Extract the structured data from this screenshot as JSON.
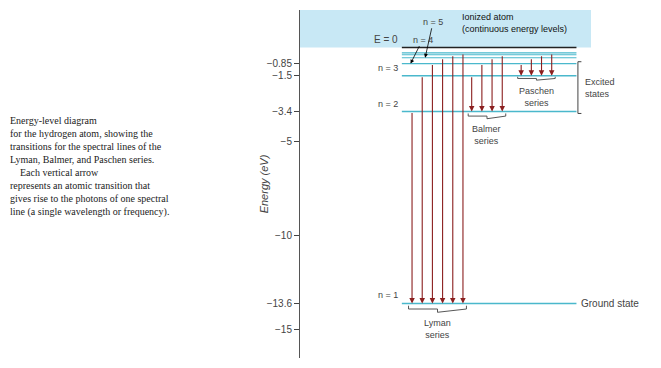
{
  "chart_data": {
    "type": "energy_levels",
    "title": "Energy-level diagram\nfor the hydrogen atom, showing the\ntransitions for the spectral lines of the\nLyman, Balmer, and Paschen series.\n    Each vertical arrow\nrepresents an atomic transition that\ngives rise to the photons of one spectral\nline (a single wavelength or frequency).",
    "ylabel": "Energy (eV)",
    "ylim": [
      -16.5,
      2.0
    ],
    "yticks": [
      {
        "value": -15,
        "label": "−15"
      },
      {
        "value": -13.6,
        "label": "−13.6"
      },
      {
        "value": -10,
        "label": "−10"
      },
      {
        "value": -5,
        "label": "−5"
      },
      {
        "value": -3.4,
        "label": "−3.4"
      },
      {
        "value": -1.5,
        "label": "−1.5"
      },
      {
        "value": -0.85,
        "label": "−0.85"
      }
    ],
    "grid": false,
    "levels": [
      -13.6,
      -3.4,
      -1.5,
      -0.85,
      -0.54,
      -0.38,
      -0.28,
      0.0
    ],
    "level_labels": [
      "n = 1",
      "n = 2",
      "n = 3",
      "n = 4",
      "n = 5",
      null,
      null,
      "E = 0"
    ],
    "colors": [
      "#4ab8cc",
      "#4ab8cc",
      "#4ab8cc",
      "#4ab8cc",
      "#4ab8cc",
      "#4ab8cc",
      "#4ab8cc",
      "#222222"
    ],
    "transitions": [
      {
        "name": "Lyman\nseries",
        "color": "#8b2020",
        "lower": -13.6,
        "upper": [
          -3.4,
          -1.5,
          -0.85,
          -0.54,
          -0.38,
          -0.28
        ]
      },
      {
        "name": "Balmer\nseries",
        "color": "#8b2020",
        "lower": -3.4,
        "upper": [
          -1.5,
          -0.85,
          -0.54,
          -0.38
        ]
      },
      {
        "name": "Paschen\nseries",
        "color": "#8b2020",
        "lower": -1.5,
        "upper": [
          -0.85,
          -0.54,
          -0.38,
          -0.28
        ]
      }
    ],
    "ionized": {
      "label": "Ionized atom\n(continuous energy levels)",
      "color": "#c8e8f5"
    },
    "ground_state": {
      "label": "Ground state",
      "level": -13.6
    },
    "excited_states": {
      "label": "Excited\nstates",
      "levels": [
        -3.4,
        -0.85
      ]
    }
  }
}
